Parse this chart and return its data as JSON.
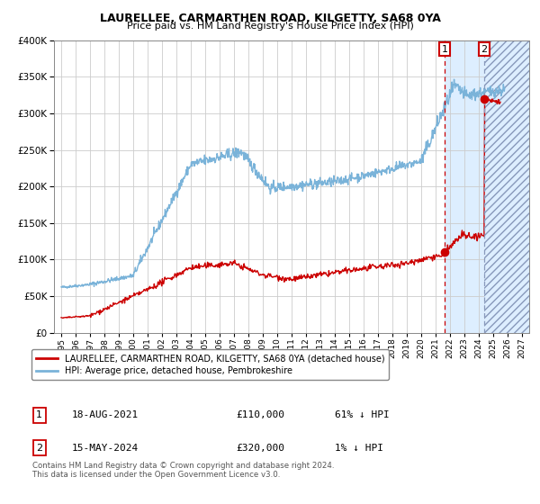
{
  "title": "LAURELLEE, CARMARTHEN ROAD, KILGETTY, SA68 0YA",
  "subtitle": "Price paid vs. HM Land Registry's House Price Index (HPI)",
  "legend_red": "LAURELLEE, CARMARTHEN ROAD, KILGETTY, SA68 0YA (detached house)",
  "legend_blue": "HPI: Average price, detached house, Pembrokeshire",
  "annotation1_date": "18-AUG-2021",
  "annotation1_price": "£110,000",
  "annotation1_hpi": "61% ↓ HPI",
  "annotation1_year": 2021.62,
  "annotation1_value_red": 110000,
  "annotation2_date": "15-MAY-2024",
  "annotation2_price": "£320,000",
  "annotation2_hpi": "1% ↓ HPI",
  "annotation2_year": 2024.37,
  "annotation2_value_red": 320000,
  "hpi_color": "#7ab3d9",
  "price_color": "#cc0000",
  "dot_color": "#cc0000",
  "annotation_box_color": "#cc0000",
  "future_shade_color": "#ddeeff",
  "footnote": "Contains HM Land Registry data © Crown copyright and database right 2024.\nThis data is licensed under the Open Government Licence v3.0.",
  "ylim": [
    0,
    400000
  ],
  "yticks": [
    0,
    50000,
    100000,
    150000,
    200000,
    250000,
    300000,
    350000,
    400000
  ],
  "xlim_start": 1994.5,
  "xlim_end": 2027.5
}
